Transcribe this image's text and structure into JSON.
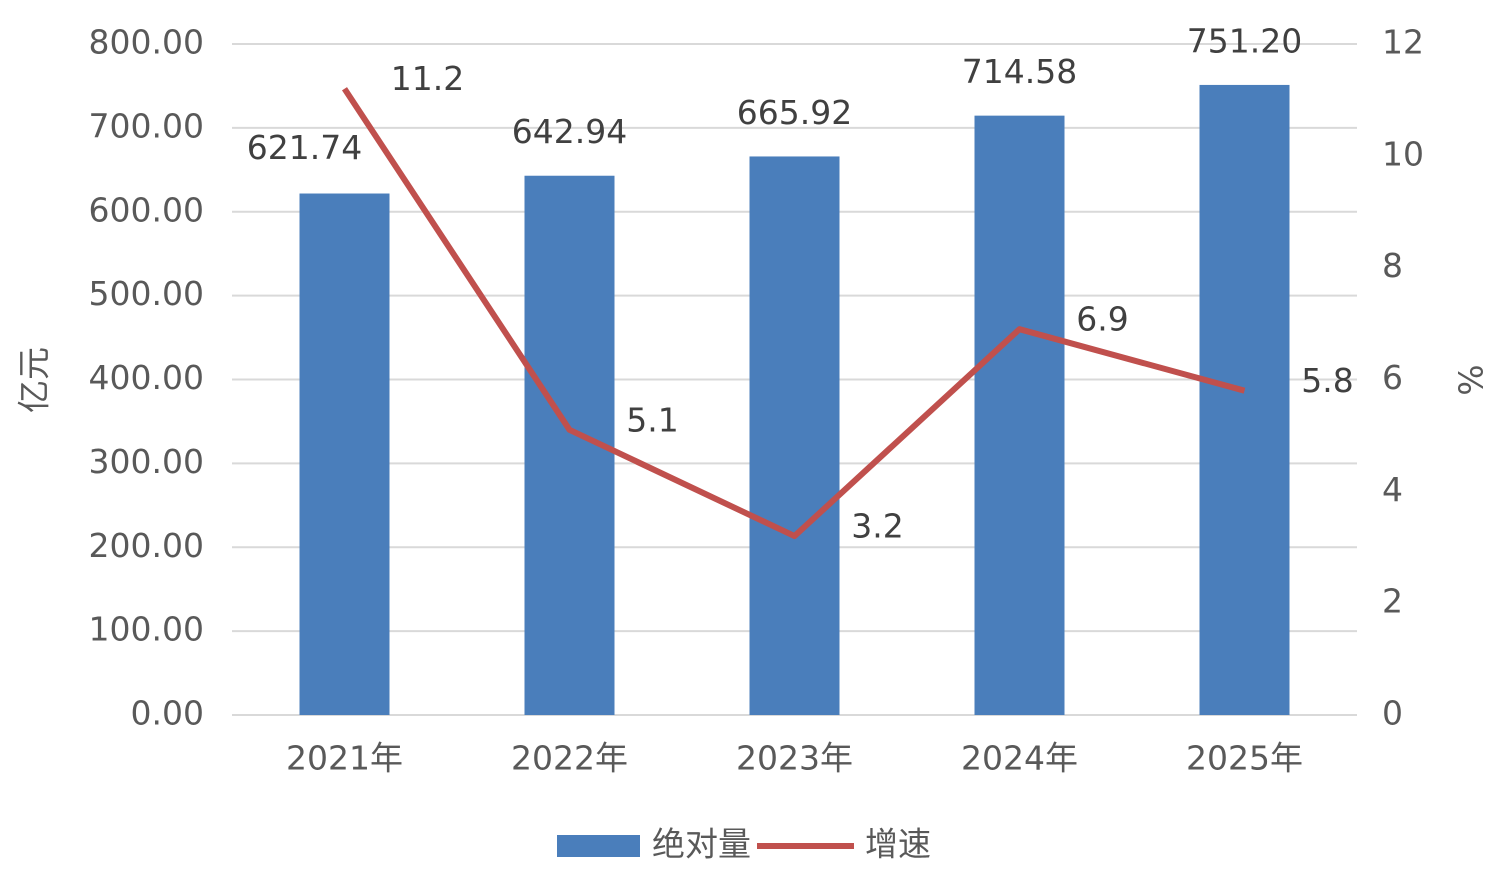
{
  "chart_data": {
    "type": "bar",
    "categories": [
      "2021年",
      "2022年",
      "2023年",
      "2024年",
      "2025年"
    ],
    "series": [
      {
        "name": "绝对量",
        "type": "bar",
        "color": "#4a7ebb",
        "values": [
          621.74,
          642.94,
          665.92,
          714.58,
          751.2
        ],
        "value_labels": [
          "621.74",
          "642.94",
          "665.92",
          "714.58",
          "751.20"
        ]
      },
      {
        "name": "增速",
        "type": "line",
        "axis": "y2",
        "color": "#c0504d",
        "values": [
          11.2,
          5.1,
          3.2,
          6.9,
          5.8
        ]
      }
    ],
    "ylabel": "亿元",
    "y2label": "%",
    "ylim": [
      0,
      800
    ],
    "yticks": [
      {
        "value": 0,
        "label": "0.00"
      },
      {
        "value": 100,
        "label": "100.00"
      },
      {
        "value": 200,
        "label": "200.00"
      },
      {
        "value": 300,
        "label": "300.00"
      },
      {
        "value": 400,
        "label": "400.00"
      },
      {
        "value": 500,
        "label": "500.00"
      },
      {
        "value": 600,
        "label": "600.00"
      },
      {
        "value": 700,
        "label": "700.00"
      },
      {
        "value": 800,
        "label": "800.00"
      }
    ],
    "y2lim": [
      0,
      12
    ],
    "y2ticks": [
      0,
      2,
      4,
      6,
      8,
      10,
      12
    ],
    "grid": true,
    "legend": "bottom"
  }
}
